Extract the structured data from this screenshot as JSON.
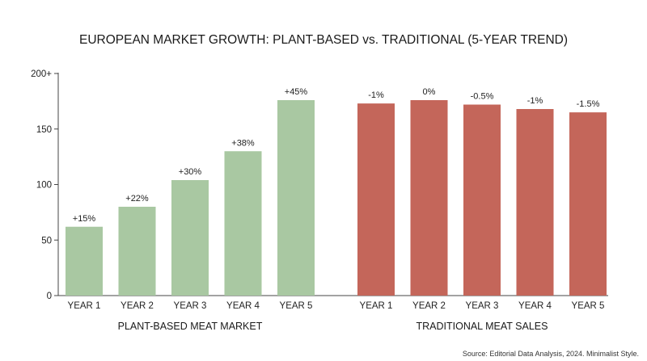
{
  "chart_data": {
    "type": "bar",
    "title": "EUROPEAN MARKET GROWTH: PLANT-BASED vs. TRADITIONAL (5-YEAR TREND)",
    "ylim": [
      0,
      200
    ],
    "yticks": [
      "0",
      "50",
      "100",
      "150",
      "200+"
    ],
    "grid": false,
    "groups": [
      {
        "name": "PLANT-BASED MEAT MARKET",
        "color": "#a9c8a2",
        "categories": [
          "YEAR 1",
          "YEAR 2",
          "YEAR 3",
          "YEAR 4",
          "YEAR 5"
        ],
        "values": [
          62,
          80,
          104,
          130,
          176
        ],
        "labels": [
          "+15%",
          "+22%",
          "+30%",
          "+38%",
          "+45%"
        ]
      },
      {
        "name": "TRADITIONAL MEAT SALES",
        "color": "#c4665a",
        "categories": [
          "YEAR 1",
          "YEAR 2",
          "YEAR 3",
          "YEAR 4",
          "YEAR 5"
        ],
        "values": [
          173,
          176,
          172,
          168,
          165
        ],
        "labels": [
          "-1%",
          "0%",
          "-0.5%",
          "-1%",
          "-1.5%"
        ]
      }
    ],
    "source": "Source: Editorial Data Analysis, 2024. Minimalist Style."
  }
}
